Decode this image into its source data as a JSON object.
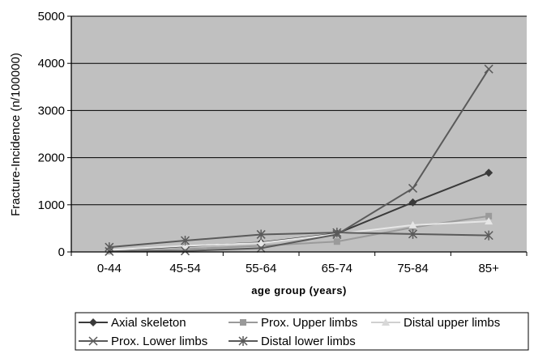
{
  "chart_data": {
    "type": "line",
    "title": "",
    "xlabel": "age  group  (years)",
    "ylabel": "Fracture-Incidence (n/100000)",
    "categories": [
      "0-44",
      "45-54",
      "55-64",
      "65-74",
      "75-84",
      "85+"
    ],
    "ylim": [
      0,
      5000
    ],
    "yticks": [
      0,
      1000,
      2000,
      3000,
      4000,
      5000
    ],
    "grid": true,
    "legend_position": "bottom",
    "background": "#c0c0c0",
    "series": [
      {
        "name": "Axial skeleton",
        "marker": "diamond",
        "color": "#3a3a3a",
        "values": [
          30,
          120,
          200,
          390,
          1050,
          1680
        ]
      },
      {
        "name": "Prox. Upper limbs",
        "marker": "square",
        "color": "#9a9a9a",
        "values": [
          20,
          60,
          130,
          220,
          520,
          760
        ]
      },
      {
        "name": "Distal upper limbs",
        "marker": "triangle",
        "color": "#e6e6e6",
        "values": [
          40,
          130,
          190,
          380,
          570,
          650
        ]
      },
      {
        "name": "Prox. Lower limbs",
        "marker": "x",
        "color": "#5a5a5a",
        "values": [
          10,
          20,
          80,
          370,
          1350,
          3880
        ]
      },
      {
        "name": "Distal lower limbs",
        "marker": "asterisk",
        "color": "#5a5a5a",
        "values": [
          100,
          240,
          370,
          410,
          380,
          350
        ]
      }
    ]
  }
}
